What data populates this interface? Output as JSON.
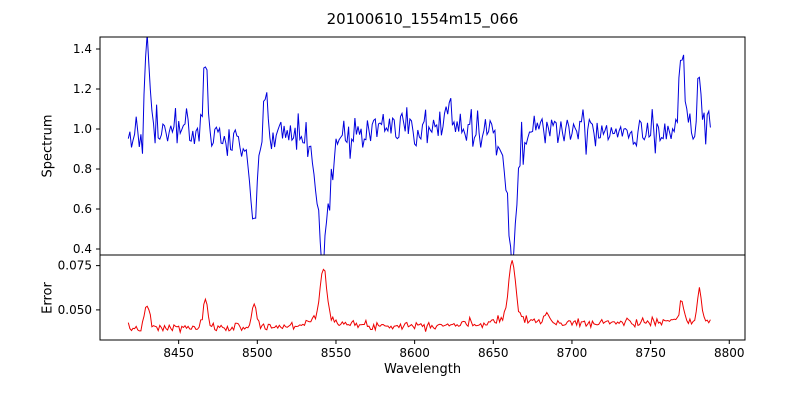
{
  "chart_data": {
    "type": "line",
    "title": "20100610_1554m15_066",
    "xlabel": "Wavelength",
    "xlim": [
      8400,
      8810
    ],
    "grid": false,
    "legend": "none",
    "xticks": [
      {
        "value": 8450,
        "label": "8450"
      },
      {
        "value": 8500,
        "label": "8500"
      },
      {
        "value": 8550,
        "label": "8550"
      },
      {
        "value": 8600,
        "label": "8600"
      },
      {
        "value": 8650,
        "label": "8650"
      },
      {
        "value": 8700,
        "label": "8700"
      },
      {
        "value": 8750,
        "label": "8750"
      },
      {
        "value": 8800,
        "label": "8800"
      }
    ],
    "panels": [
      {
        "name": "spectrum",
        "ylabel": "Spectrum",
        "color": "#0000dd",
        "ylim": [
          0.37,
          1.46
        ],
        "yticks": [
          {
            "value": 0.4,
            "label": "0.4"
          },
          {
            "value": 0.6,
            "label": "0.6"
          },
          {
            "value": 0.8,
            "label": "0.8"
          },
          {
            "value": 1.0,
            "label": "1.0"
          },
          {
            "value": 1.2,
            "label": "1.2"
          },
          {
            "value": 1.4,
            "label": "1.4"
          }
        ],
        "x_start": 8418,
        "x_end": 8788,
        "x_step": 1,
        "baseline": 1.0,
        "trend": 0.0,
        "noise_sigma": 0.05,
        "seed": 42,
        "features": {
          "absorption": [
            {
              "center": 8498,
              "depth": 0.4,
              "width": 2.2
            },
            {
              "center": 8542,
              "depth": 0.58,
              "width": 3.2
            },
            {
              "center": 8662,
              "depth": 0.55,
              "width": 2.8
            },
            {
              "center": 8542,
              "depth": 0.08,
              "width": 14
            },
            {
              "center": 8498,
              "depth": 0.05,
              "width": 9
            },
            {
              "center": 8662,
              "depth": 0.05,
              "width": 9
            },
            {
              "center": 8483,
              "depth": 0.08,
              "width": 6
            }
          ],
          "emission": [
            {
              "center": 8430,
              "height": 0.4,
              "width": 1.4
            },
            {
              "center": 8467,
              "height": 0.42,
              "width": 1.1
            },
            {
              "center": 8505,
              "height": 0.22,
              "width": 1.2
            },
            {
              "center": 8622,
              "height": 0.12,
              "width": 1.6
            },
            {
              "center": 8770,
              "height": 0.4,
              "width": 1.5
            },
            {
              "center": 8781,
              "height": 0.33,
              "width": 1.2
            }
          ]
        }
      },
      {
        "name": "error",
        "ylabel": "Error",
        "color": "#ee0000",
        "ylim": [
          0.033,
          0.081
        ],
        "yticks": [
          {
            "value": 0.05,
            "label": "0.050"
          },
          {
            "value": 0.075,
            "label": "0.075"
          }
        ],
        "x_start": 8418,
        "x_end": 8788,
        "x_step": 1,
        "baseline": 0.0395,
        "trend": 0.004,
        "noise_sigma": 0.0012,
        "seed": 7,
        "features": {
          "absorption": [],
          "emission": [
            {
              "center": 8430,
              "height": 0.013,
              "width": 1.5
            },
            {
              "center": 8467,
              "height": 0.017,
              "width": 1.2
            },
            {
              "center": 8498,
              "height": 0.013,
              "width": 1.5
            },
            {
              "center": 8542,
              "height": 0.026,
              "width": 2.0
            },
            {
              "center": 8542,
              "height": 0.006,
              "width": 8
            },
            {
              "center": 8662,
              "height": 0.03,
              "width": 2.0
            },
            {
              "center": 8662,
              "height": 0.006,
              "width": 8
            },
            {
              "center": 8684,
              "height": 0.006,
              "width": 1.5
            },
            {
              "center": 8770,
              "height": 0.01,
              "width": 1.5
            },
            {
              "center": 8781,
              "height": 0.02,
              "width": 1.2
            }
          ]
        }
      }
    ]
  }
}
